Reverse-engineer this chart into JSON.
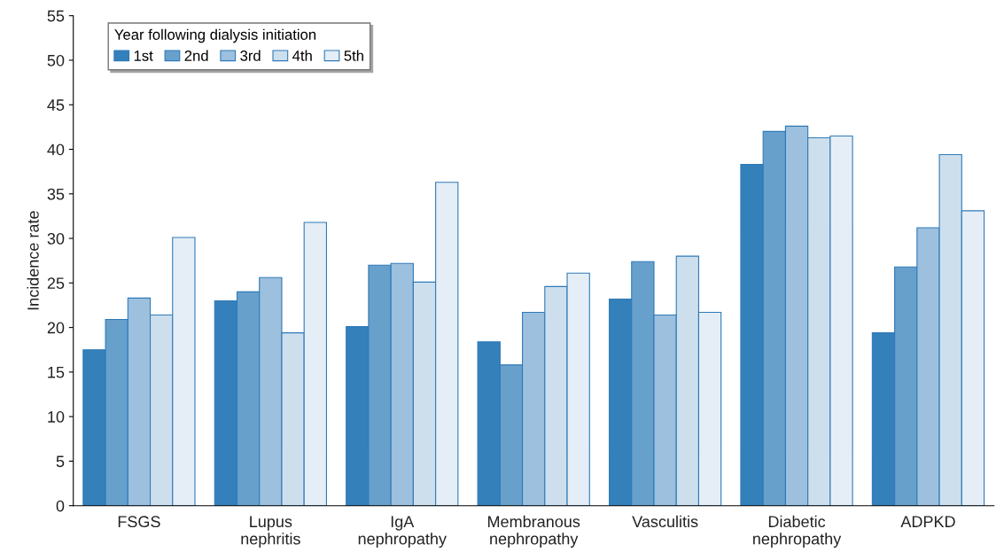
{
  "chart_data": {
    "type": "bar",
    "ylabel": "Incidence rate",
    "legend_title": "Year following dialysis initiation",
    "categories": [
      "FSGS",
      "Lupus\nnephritis",
      "IgA\nnephropathy",
      "Membranous\nnephropathy",
      "Vasculitis",
      "Diabetic\nnephropathy",
      "ADPKD"
    ],
    "series": [
      {
        "name": "1st",
        "color": "#3380bb",
        "values": [
          17.5,
          23.0,
          20.1,
          18.4,
          23.2,
          38.3,
          19.4
        ]
      },
      {
        "name": "2nd",
        "color": "#68a0cc",
        "values": [
          20.9,
          24.0,
          27.0,
          15.8,
          27.4,
          42.0,
          26.8
        ]
      },
      {
        "name": "3rd",
        "color": "#9cc0de",
        "values": [
          23.3,
          25.6,
          27.2,
          21.7,
          21.4,
          42.6,
          31.2
        ]
      },
      {
        "name": "4th",
        "color": "#cddfed",
        "values": [
          21.4,
          19.4,
          25.1,
          24.6,
          28.0,
          41.3,
          39.4
        ]
      },
      {
        "name": "5th",
        "color": "#e5eef6",
        "values": [
          30.1,
          31.8,
          36.3,
          26.1,
          21.7,
          41.5,
          33.1
        ]
      }
    ],
    "ylim": [
      0,
      55
    ],
    "yticks": [
      0,
      5,
      10,
      15,
      20,
      25,
      30,
      35,
      40,
      45,
      50,
      55
    ],
    "legend": "top left",
    "grid": false
  }
}
